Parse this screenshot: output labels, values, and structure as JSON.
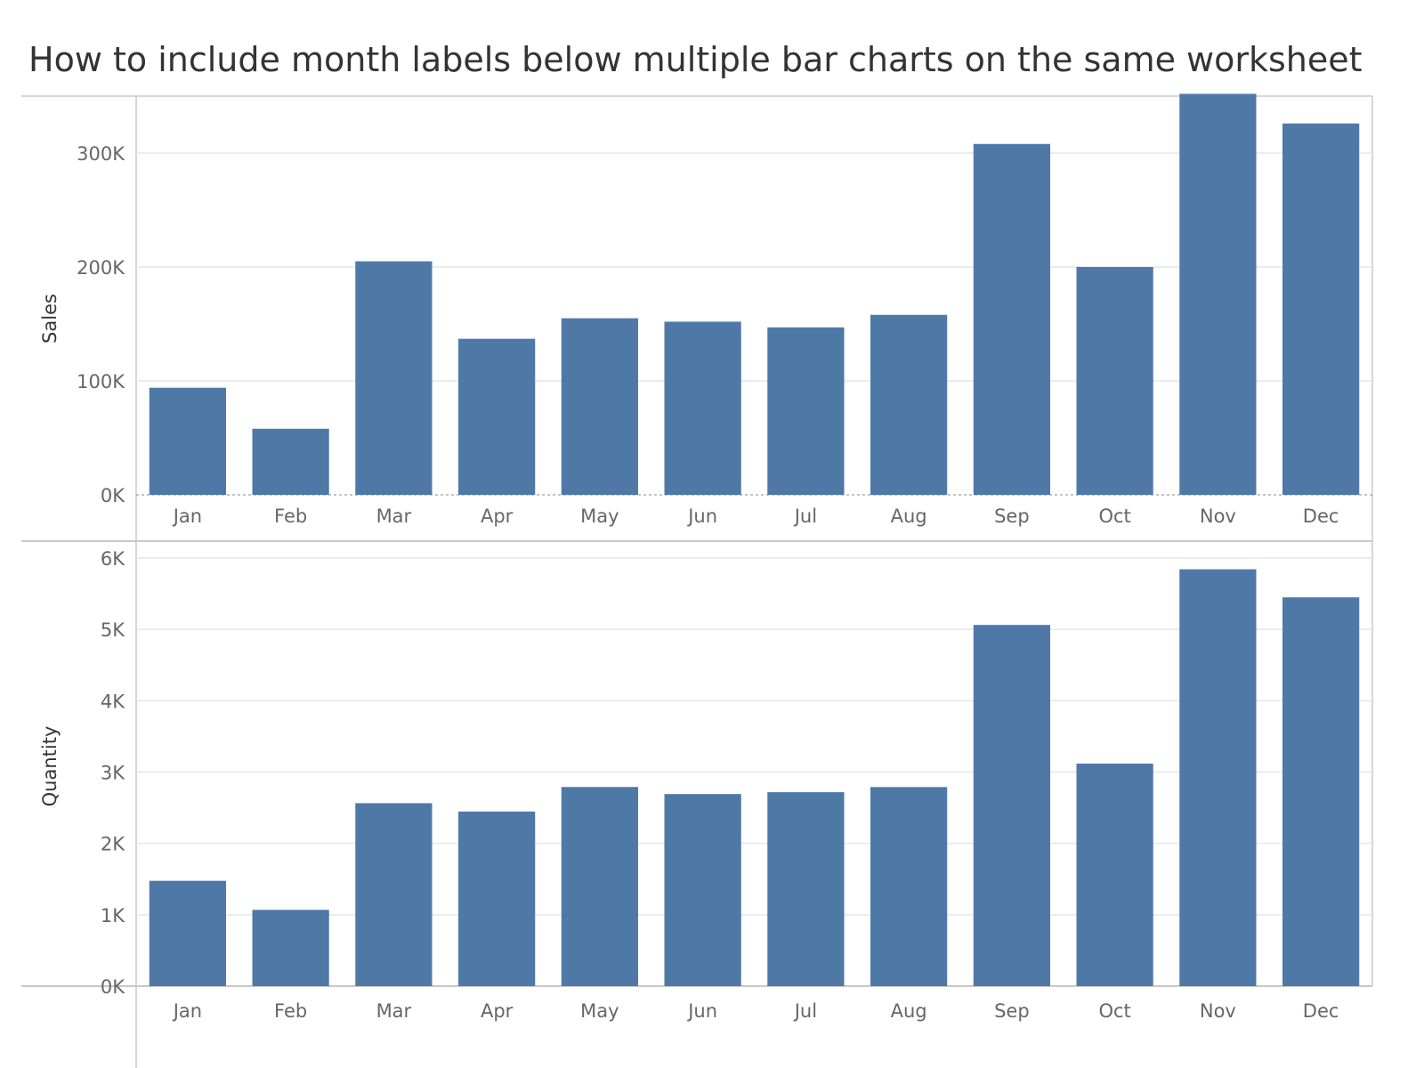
{
  "colors": {
    "bar": "#4e79a7",
    "grid": "#e6e6e6",
    "frame": "#c8c8c8",
    "zero_line": "#a0a0a0",
    "axis_text": "#666666",
    "title_text": "#333333"
  },
  "chart_data": {
    "type": "bar",
    "title": "How to include month labels below multiple bar charts on the same worksheet",
    "categories": [
      "Jan",
      "Feb",
      "Mar",
      "Apr",
      "May",
      "Jun",
      "Jul",
      "Aug",
      "Sep",
      "Oct",
      "Nov",
      "Dec"
    ],
    "grid": true,
    "panels": [
      {
        "ylabel": "Sales",
        "ylim": [
          0,
          350000
        ],
        "ticks": [
          0,
          100000,
          200000,
          300000
        ],
        "tick_labels": [
          "0K",
          "100K",
          "200K",
          "300K"
        ],
        "values": [
          94000,
          58000,
          205000,
          137000,
          155000,
          152000,
          147000,
          158000,
          308000,
          200000,
          352000,
          326000
        ]
      },
      {
        "ylabel": "Quantity",
        "ylim": [
          0,
          6000
        ],
        "ticks": [
          0,
          1000,
          2000,
          3000,
          4000,
          5000,
          6000
        ],
        "tick_labels": [
          "0K",
          "1K",
          "2K",
          "3K",
          "4K",
          "5K",
          "6K"
        ],
        "values": [
          1476,
          1069,
          2564,
          2447,
          2791,
          2692,
          2718,
          2790,
          5062,
          3119,
          5842,
          5449
        ]
      }
    ]
  }
}
